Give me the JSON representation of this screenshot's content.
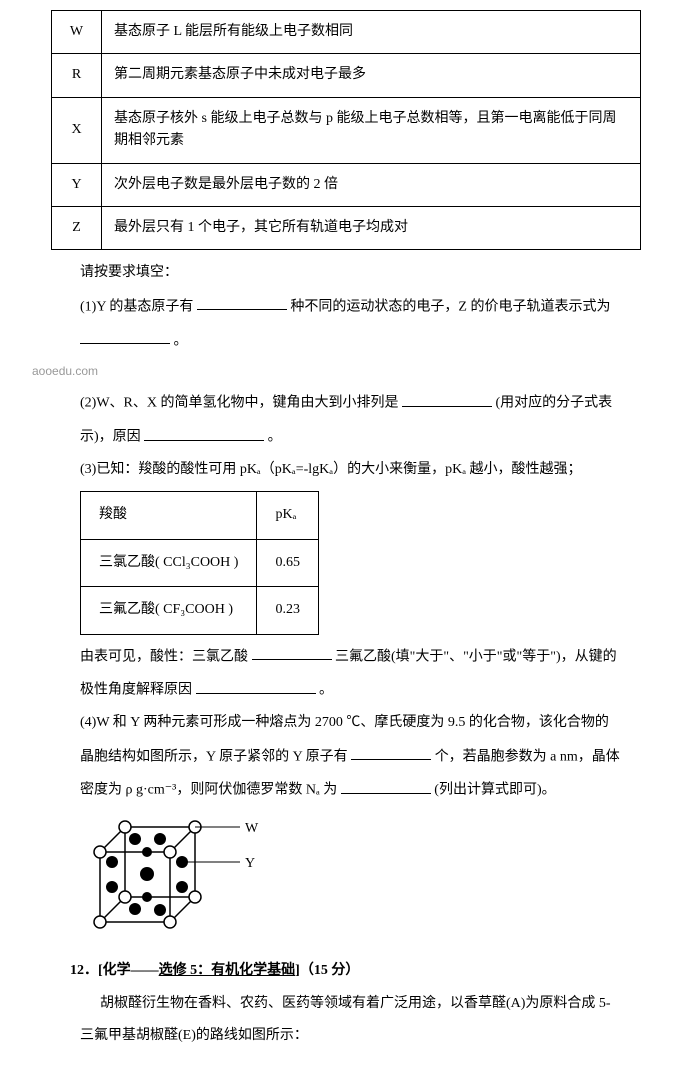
{
  "elements_table": {
    "rows": [
      {
        "sym": "W",
        "desc": "基态原子 L 能层所有能级上电子数相同"
      },
      {
        "sym": "R",
        "desc": "第二周期元素基态原子中未成对电子最多"
      },
      {
        "sym": "X",
        "desc": "基态原子核外 s 能级上电子总数与 p 能级上电子总数相等，且第一电离能低于同周期相邻元素"
      },
      {
        "sym": "Y",
        "desc": "次外层电子数是最外层电子数的 2 倍"
      },
      {
        "sym": "Z",
        "desc": "最外层只有 1 个电子，其它所有轨道电子均成对"
      }
    ]
  },
  "prompt": "请按要求填空：",
  "q1_a": "(1)Y 的基态原子有",
  "q1_b": "种不同的运动状态的电子，Z 的价电子轨道表示式为",
  "q1_c": "。",
  "q2_a": "(2)W、R、X 的简单氢化物中，键角由大到小排列是",
  "q2_b": "(用对应的分子式表",
  "q2_c": "示)，原因",
  "q2_d": "。",
  "watermark": "aooedu.com",
  "q3_intro": "(3)已知：羧酸的酸性可用 pKₐ（pKₐ=-lgKₐ）的大小来衡量，pKₐ 越小，酸性越强；",
  "pka_table": {
    "header": [
      "羧酸",
      "pKₐ"
    ],
    "rows": [
      [
        "三氯乙酸( CCl₃COOH )",
        "0.65"
      ],
      [
        "三氟乙酸( CF₃COOH )",
        "0.23"
      ]
    ]
  },
  "q3_a": "由表可见，酸性：三氯乙酸",
  "q3_b": "三氟乙酸(填\"大于\"、\"小于\"或\"等于\")，从键的",
  "q3_c": "极性角度解释原因",
  "q3_d": "。",
  "q4_a": "(4)W 和 Y 两种元素可形成一种熔点为 2700 ℃、摩氏硬度为 9.5 的化合物，该化合物的",
  "q4_b": "晶胞结构如图所示，Y 原子紧邻的 Y 原子有",
  "q4_c": "个，若晶胞参数为 a nm，晶体",
  "q4_d": "密度为 ρ g·cm⁻³，则阿伏伽德罗常数 Nₐ 为",
  "q4_e": "(列出计算式即可)。",
  "crystal_labels": {
    "W": "W",
    "Y": "Y"
  },
  "q12_title_a": "12．[化学——",
  "q12_title_b": "选修 5：有机化学基础",
  "q12_title_c": "]（15 分）",
  "q12_body_a": "胡椒醛衍生物在香料、农药、医药等领域有着广泛用途，以香草醛(A)为原料合成 5-",
  "q12_body_b": "三氟甲基胡椒醛(E)的路线如图所示："
}
